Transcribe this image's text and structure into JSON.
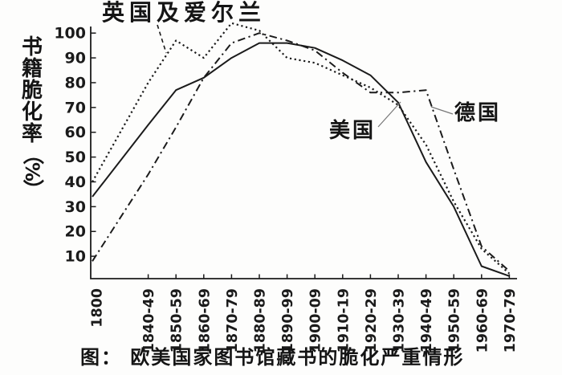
{
  "figure": {
    "caption": "图：  欧美国家图书馆藏书的脆化严重情形",
    "y_axis_title": {
      "text": "书籍脆化率（%）",
      "chars": [
        "书",
        "籍",
        "脆",
        "化",
        "率",
        "（",
        "%",
        "）"
      ]
    }
  },
  "chart_data": {
    "type": "line",
    "title": "图： 欧美国家图书馆藏书的脆化严重情形",
    "ylabel": "书籍脆化率（%）",
    "xlabel": "",
    "ylim": [
      0,
      105
    ],
    "yticks": [
      10,
      20,
      30,
      40,
      50,
      60,
      70,
      80,
      90,
      100
    ],
    "grid": false,
    "legend_position": "inline annotations with leader lines",
    "categories": [
      "1800",
      "1840-49",
      "1850-59",
      "1860-69",
      "1870-79",
      "1880-89",
      "1890-99",
      "1900-09",
      "1910-19",
      "1920-29",
      "1930-39",
      "1940-49",
      "1950-59",
      "1960-69",
      "1970-79"
    ],
    "series": [
      {
        "id": "uk-ireland",
        "name": "英国及爱尔兰",
        "line_style": "dotted",
        "color": "#1b1b1b",
        "values": [
          40,
          80,
          97,
          90,
          104,
          101,
          90,
          88,
          83,
          78,
          71,
          55,
          32,
          13,
          3
        ]
      },
      {
        "id": "usa",
        "name": "美国",
        "line_style": "solid",
        "color": "#1b1b1b",
        "values": [
          34,
          63,
          77,
          82,
          90,
          96,
          96,
          94,
          89,
          83,
          72,
          48,
          30,
          6,
          2
        ]
      },
      {
        "id": "germany",
        "name": "德国",
        "line_style": "dash-dot",
        "color": "#1b1b1b",
        "values": [
          8,
          43,
          62,
          82,
          96,
          100,
          97,
          93,
          84,
          76,
          76,
          77,
          45,
          14,
          4
        ]
      }
    ]
  }
}
